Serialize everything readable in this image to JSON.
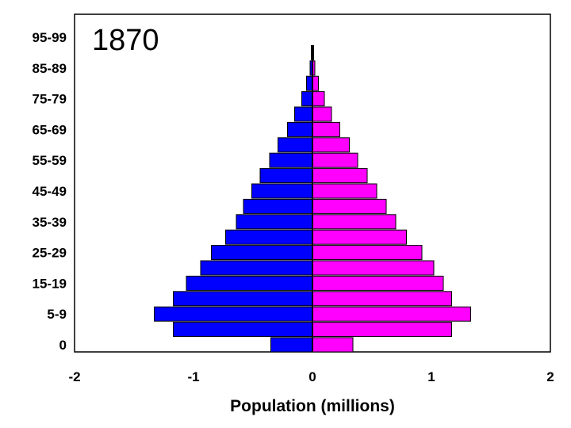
{
  "chart_data": {
    "type": "bar",
    "orientation": "horizontal",
    "subtype": "population-pyramid",
    "annotation": "1870",
    "xlabel": "Population (millions)",
    "ylabel": "",
    "xlim": [
      -2,
      2
    ],
    "x_ticks": [
      "-2",
      "-1",
      "0",
      "1",
      "2"
    ],
    "y_tick_labels": [
      "0",
      "5-9",
      "15-19",
      "25-29",
      "35-39",
      "45-49",
      "55-59",
      "65-69",
      "75-79",
      "85-89",
      "95-99"
    ],
    "grid": false,
    "categories": [
      "0-4",
      "5-9",
      "10-14",
      "15-19",
      "20-24",
      "25-29",
      "30-34",
      "35-39",
      "40-44",
      "45-49",
      "50-54",
      "55-59",
      "60-64",
      "65-69",
      "70-74",
      "75-79",
      "80-84",
      "85-89",
      "90-94",
      "95-99"
    ],
    "series": [
      {
        "color": "#0000ff",
        "values": [
          -0.35,
          -1.17,
          -1.33,
          -1.17,
          -1.06,
          -0.94,
          -0.85,
          -0.73,
          -0.64,
          -0.58,
          -0.51,
          -0.44,
          -0.36,
          -0.29,
          -0.21,
          -0.15,
          -0.09,
          -0.05,
          -0.02,
          -0.01
        ]
      },
      {
        "color": "#ff00ff",
        "values": [
          0.34,
          1.17,
          1.33,
          1.17,
          1.1,
          1.02,
          0.92,
          0.79,
          0.7,
          0.62,
          0.54,
          0.46,
          0.38,
          0.31,
          0.23,
          0.16,
          0.1,
          0.05,
          0.02,
          0.01
        ]
      }
    ]
  }
}
